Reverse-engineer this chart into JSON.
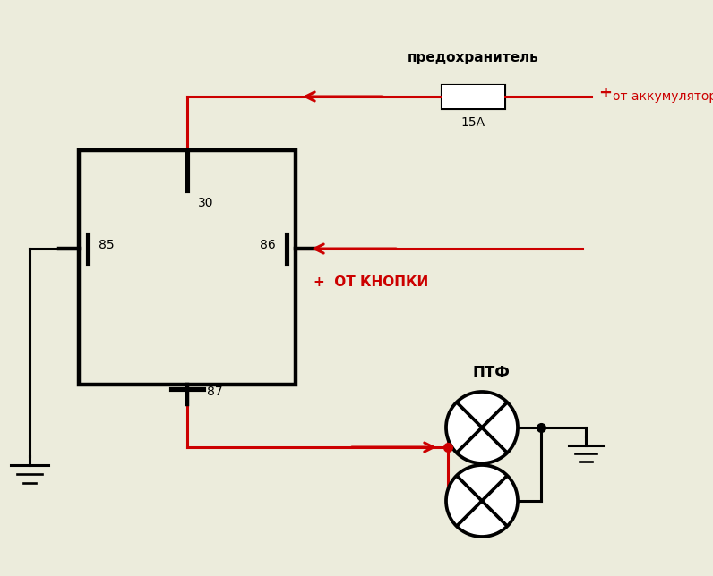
{
  "bg_color": "#ececdc",
  "red": "#cc0000",
  "black": "#000000",
  "fuse_label": "предохранитель",
  "fuse_value": "15A",
  "battery_label": "от аккумулятора",
  "button_label": "ОТ КНОПКИ",
  "ptf_label": "ПТФ",
  "pin30": "30",
  "pin85": "85",
  "pin86": "86",
  "pin87": "87"
}
